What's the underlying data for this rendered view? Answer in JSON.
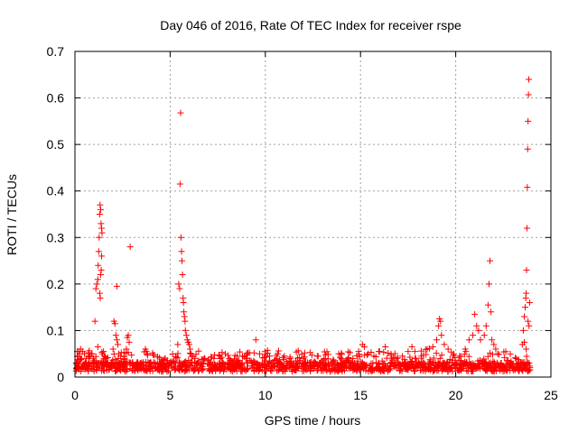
{
  "chart_data": {
    "type": "scatter",
    "title": "Day 046 of 2016, Rate Of TEC Index for receiver rspe",
    "xlabel": "GPS time / hours",
    "ylabel": "ROTI / TECUs",
    "xlim": [
      0,
      25
    ],
    "ylim": [
      0,
      0.7
    ],
    "xticks": [
      0,
      5,
      10,
      15,
      20,
      25
    ],
    "yticks": [
      0,
      0.1,
      0.2,
      0.3,
      0.4,
      0.5,
      0.6,
      0.7
    ],
    "xtick_labels": [
      "0",
      "5",
      "10",
      "15",
      "20",
      "25"
    ],
    "ytick_labels": [
      "0",
      "0.1",
      "0.2",
      "0.3",
      "0.4",
      "0.5",
      "0.6",
      "0.7"
    ],
    "grid": true,
    "marker": "+",
    "color": "#ff0000",
    "series": [
      {
        "name": "ROTI",
        "points": [
          [
            0.1,
            0.02
          ],
          [
            0.15,
            0.045
          ],
          [
            0.2,
            0.055
          ],
          [
            0.25,
            0.05
          ],
          [
            0.3,
            0.06
          ],
          [
            0.35,
            0.04
          ],
          [
            0.4,
            0.055
          ],
          [
            0.5,
            0.05
          ],
          [
            0.55,
            0.03
          ],
          [
            0.6,
            0.04
          ],
          [
            0.7,
            0.025
          ],
          [
            0.8,
            0.045
          ],
          [
            0.9,
            0.05
          ],
          [
            1.0,
            0.035
          ],
          [
            1.05,
            0.12
          ],
          [
            1.1,
            0.19
          ],
          [
            1.15,
            0.2
          ],
          [
            1.2,
            0.21
          ],
          [
            1.22,
            0.24
          ],
          [
            1.25,
            0.27
          ],
          [
            1.27,
            0.3
          ],
          [
            1.3,
            0.35
          ],
          [
            1.32,
            0.37
          ],
          [
            1.35,
            0.36
          ],
          [
            1.37,
            0.33
          ],
          [
            1.4,
            0.32
          ],
          [
            1.42,
            0.31
          ],
          [
            1.3,
            0.18
          ],
          [
            1.33,
            0.17
          ],
          [
            1.35,
            0.22
          ],
          [
            1.38,
            0.23
          ],
          [
            1.4,
            0.26
          ],
          [
            1.2,
            0.065
          ],
          [
            1.45,
            0.05
          ],
          [
            1.5,
            0.055
          ],
          [
            1.55,
            0.045
          ],
          [
            1.6,
            0.04
          ],
          [
            1.7,
            0.025
          ],
          [
            1.9,
            0.03
          ],
          [
            2.0,
            0.06
          ],
          [
            2.05,
            0.12
          ],
          [
            2.1,
            0.115
          ],
          [
            2.15,
            0.09
          ],
          [
            2.2,
            0.08
          ],
          [
            2.25,
            0.07
          ],
          [
            2.3,
            0.05
          ],
          [
            2.2,
            0.195
          ],
          [
            2.4,
            0.045
          ],
          [
            2.6,
            0.04
          ],
          [
            2.7,
            0.06
          ],
          [
            2.75,
            0.085
          ],
          [
            2.8,
            0.09
          ],
          [
            2.85,
            0.075
          ],
          [
            2.9,
            0.28
          ],
          [
            3.0,
            0.03
          ],
          [
            3.2,
            0.02
          ],
          [
            3.5,
            0.025
          ],
          [
            3.7,
            0.06
          ],
          [
            3.75,
            0.055
          ],
          [
            3.8,
            0.05
          ],
          [
            3.9,
            0.03
          ],
          [
            4.2,
            0.02
          ],
          [
            4.5,
            0.025
          ],
          [
            4.8,
            0.02
          ],
          [
            5.0,
            0.03
          ],
          [
            5.2,
            0.035
          ],
          [
            5.4,
            0.07
          ],
          [
            5.45,
            0.2
          ],
          [
            5.5,
            0.19
          ],
          [
            5.52,
            0.415
          ],
          [
            5.55,
            0.568
          ],
          [
            5.57,
            0.3
          ],
          [
            5.6,
            0.27
          ],
          [
            5.62,
            0.25
          ],
          [
            5.65,
            0.22
          ],
          [
            5.68,
            0.17
          ],
          [
            5.7,
            0.16
          ],
          [
            5.72,
            0.14
          ],
          [
            5.75,
            0.13
          ],
          [
            5.78,
            0.12
          ],
          [
            5.8,
            0.1
          ],
          [
            5.85,
            0.09
          ],
          [
            5.9,
            0.08
          ],
          [
            5.95,
            0.075
          ],
          [
            6.0,
            0.07
          ],
          [
            6.05,
            0.06
          ],
          [
            6.1,
            0.05
          ],
          [
            6.2,
            0.045
          ],
          [
            6.3,
            0.04
          ],
          [
            6.5,
            0.035
          ],
          [
            6.8,
            0.04
          ],
          [
            7.0,
            0.035
          ],
          [
            7.3,
            0.04
          ],
          [
            7.6,
            0.045
          ],
          [
            7.9,
            0.05
          ],
          [
            8.1,
            0.04
          ],
          [
            8.5,
            0.035
          ],
          [
            8.8,
            0.045
          ],
          [
            9.0,
            0.04
          ],
          [
            9.3,
            0.03
          ],
          [
            9.5,
            0.08
          ],
          [
            9.7,
            0.05
          ],
          [
            10.0,
            0.035
          ],
          [
            10.3,
            0.03
          ],
          [
            10.6,
            0.04
          ],
          [
            11.0,
            0.045
          ],
          [
            11.3,
            0.04
          ],
          [
            11.6,
            0.035
          ],
          [
            12.0,
            0.04
          ],
          [
            12.3,
            0.03
          ],
          [
            12.6,
            0.025
          ],
          [
            13.0,
            0.035
          ],
          [
            13.3,
            0.03
          ],
          [
            13.6,
            0.035
          ],
          [
            14.0,
            0.04
          ],
          [
            14.3,
            0.035
          ],
          [
            14.6,
            0.04
          ],
          [
            14.9,
            0.055
          ],
          [
            15.1,
            0.07
          ],
          [
            15.2,
            0.065
          ],
          [
            15.4,
            0.05
          ],
          [
            15.7,
            0.045
          ],
          [
            16.0,
            0.055
          ],
          [
            16.3,
            0.065
          ],
          [
            16.6,
            0.05
          ],
          [
            16.9,
            0.04
          ],
          [
            17.2,
            0.045
          ],
          [
            17.5,
            0.055
          ],
          [
            17.7,
            0.065
          ],
          [
            17.9,
            0.04
          ],
          [
            18.2,
            0.045
          ],
          [
            18.5,
            0.06
          ],
          [
            18.8,
            0.065
          ],
          [
            19.0,
            0.08
          ],
          [
            19.1,
            0.11
          ],
          [
            19.15,
            0.125
          ],
          [
            19.2,
            0.12
          ],
          [
            19.25,
            0.09
          ],
          [
            19.4,
            0.07
          ],
          [
            19.6,
            0.06
          ],
          [
            19.9,
            0.05
          ],
          [
            20.2,
            0.045
          ],
          [
            20.5,
            0.06
          ],
          [
            20.7,
            0.08
          ],
          [
            20.9,
            0.09
          ],
          [
            21.0,
            0.135
          ],
          [
            21.1,
            0.11
          ],
          [
            21.2,
            0.1
          ],
          [
            21.3,
            0.08
          ],
          [
            21.5,
            0.09
          ],
          [
            21.6,
            0.11
          ],
          [
            21.7,
            0.155
          ],
          [
            21.75,
            0.2
          ],
          [
            21.8,
            0.25
          ],
          [
            21.85,
            0.14
          ],
          [
            21.9,
            0.08
          ],
          [
            22.0,
            0.07
          ],
          [
            22.1,
            0.06
          ],
          [
            22.2,
            0.05
          ],
          [
            22.4,
            0.03
          ],
          [
            22.7,
            0.025
          ],
          [
            23.0,
            0.02
          ],
          [
            23.3,
            0.02
          ],
          [
            23.5,
            0.07
          ],
          [
            23.55,
            0.1
          ],
          [
            23.6,
            0.13
          ],
          [
            23.65,
            0.15
          ],
          [
            23.68,
            0.17
          ],
          [
            23.7,
            0.18
          ],
          [
            23.72,
            0.23
          ],
          [
            23.74,
            0.32
          ],
          [
            23.76,
            0.408
          ],
          [
            23.78,
            0.49
          ],
          [
            23.8,
            0.55
          ],
          [
            23.82,
            0.607
          ],
          [
            23.84,
            0.64
          ],
          [
            23.8,
            0.12
          ],
          [
            23.85,
            0.11
          ],
          [
            23.88,
            0.16
          ],
          [
            23.9,
            0.015
          ],
          [
            23.9,
            0.02
          ],
          [
            23.6,
            0.075
          ],
          [
            23.7,
            0.06
          ]
        ]
      }
    ]
  }
}
